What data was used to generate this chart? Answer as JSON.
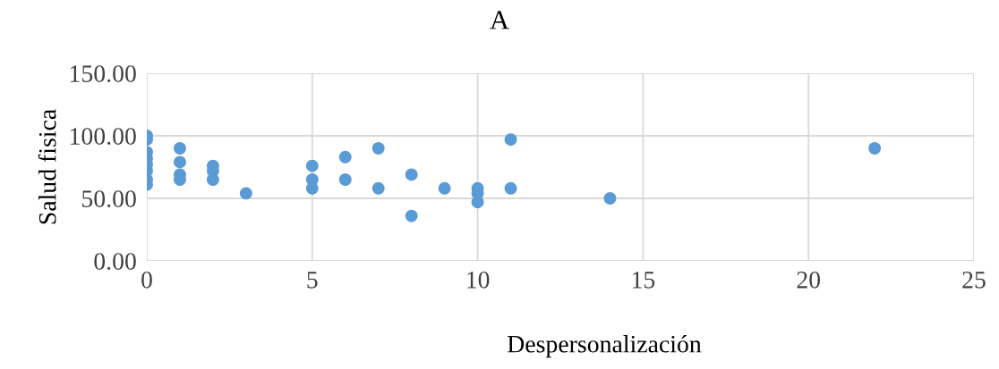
{
  "chart_data": {
    "type": "scatter",
    "title": "A",
    "xlabel": "Despersonalización",
    "ylabel": "Salud fisica",
    "x": [
      0,
      0,
      0,
      0,
      0,
      0,
      0,
      0,
      1,
      1,
      1,
      1,
      2,
      2,
      2,
      3,
      5,
      5,
      5,
      6,
      6,
      7,
      7,
      8,
      8,
      9,
      10,
      10,
      10,
      11,
      11,
      14,
      22
    ],
    "series": [
      {
        "color": "#5b9bd5",
        "values": [
          100,
          97,
          87,
          82,
          77,
          72,
          65,
          61,
          90,
          79,
          69,
          65,
          76,
          72,
          65,
          54,
          76,
          65,
          58,
          83,
          65,
          90,
          58,
          69,
          36,
          58,
          58,
          54,
          47,
          97,
          58,
          50,
          90
        ]
      }
    ],
    "xlim": [
      0,
      25
    ],
    "xticks": [
      0,
      5,
      10,
      15,
      20,
      25
    ],
    "ylim": [
      0,
      150
    ],
    "yticks": [
      {
        "value": 0,
        "label": "0.00"
      },
      {
        "value": 50,
        "label": "50.00"
      },
      {
        "value": 100,
        "label": "100.00"
      },
      {
        "value": 150,
        "label": "150.00"
      }
    ],
    "grid": true,
    "marker": "circle"
  }
}
